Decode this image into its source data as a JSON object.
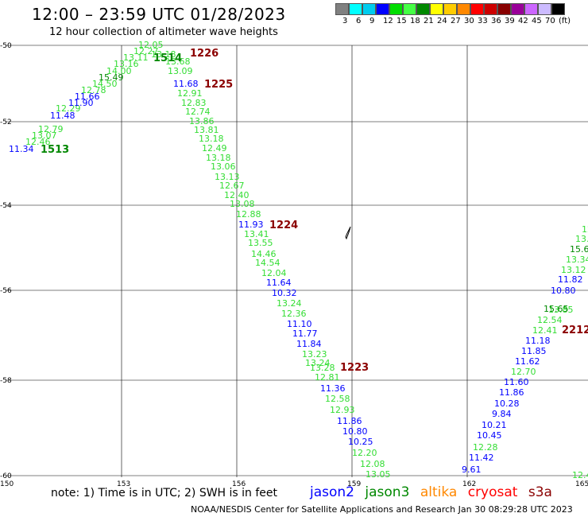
{
  "header": {
    "title": "12:00 – 23:59 UTC 01/28/2023",
    "subtitle": "12 hour collection of altimeter wave heights"
  },
  "scale": {
    "colors": [
      "#808080",
      "#00ffff",
      "#00ccee",
      "#0000ff",
      "#00dd00",
      "#44ff44",
      "#008800",
      "#ffff00",
      "#ffcc00",
      "#ff8800",
      "#ff0000",
      "#cc0000",
      "#880000",
      "#990099",
      "#cc66ff",
      "#ccbbff",
      "#000000"
    ],
    "labels": [
      "3",
      "6",
      "9",
      "12",
      "15",
      "18",
      "21",
      "24",
      "27",
      "30",
      "33",
      "36",
      "39",
      "42",
      "45",
      "70",
      "(ft)"
    ]
  },
  "axes": {
    "y_labels": [
      "-50",
      "-52",
      "-54",
      "-56",
      "-58",
      "-60"
    ],
    "x_labels": [
      "150",
      "153",
      "156",
      "159",
      "162",
      "165"
    ]
  },
  "colors": {
    "blue": "#0000ff",
    "lightgreen": "#33dd33",
    "green": "#008800",
    "darkred": "#8b0000"
  },
  "passes": [
    "1513",
    "1514",
    "1226",
    "1225",
    "1224",
    "1223",
    "2212"
  ],
  "track1": [
    {
      "v": "11.34",
      "c": "blue"
    },
    {
      "v": "12.46",
      "c": "lightgreen"
    },
    {
      "v": "13.07",
      "c": "lightgreen"
    },
    {
      "v": "12.79",
      "c": "lightgreen"
    },
    {
      "v": "11.48",
      "c": "blue"
    },
    {
      "v": "12.29",
      "c": "lightgreen"
    },
    {
      "v": "11.90",
      "c": "blue"
    },
    {
      "v": "11.66",
      "c": "blue"
    },
    {
      "v": "12.78",
      "c": "lightgreen"
    },
    {
      "v": "14.50",
      "c": "lightgreen"
    },
    {
      "v": "15.49",
      "c": "green"
    },
    {
      "v": "14.00",
      "c": "lightgreen"
    },
    {
      "v": "13.16",
      "c": "lightgreen"
    },
    {
      "v": "13.11",
      "c": "lightgreen"
    },
    {
      "v": "12.27",
      "c": "lightgreen"
    },
    {
      "v": "12.05",
      "c": "lightgreen"
    },
    {
      "v": "13.18",
      "c": "lightgreen"
    },
    {
      "v": "13.68",
      "c": "lightgreen"
    },
    {
      "v": "13.09",
      "c": "lightgreen"
    }
  ],
  "track2": [
    {
      "v": "11.68",
      "c": "blue"
    },
    {
      "v": "12.91",
      "c": "lightgreen"
    },
    {
      "v": "12.83",
      "c": "lightgreen"
    },
    {
      "v": "12.74",
      "c": "lightgreen"
    },
    {
      "v": "13.86",
      "c": "lightgreen"
    },
    {
      "v": "13.81",
      "c": "lightgreen"
    },
    {
      "v": "13.18",
      "c": "lightgreen"
    },
    {
      "v": "12.49",
      "c": "lightgreen"
    },
    {
      "v": "13.18",
      "c": "lightgreen"
    },
    {
      "v": "13.06",
      "c": "lightgreen"
    },
    {
      "v": "13.13",
      "c": "lightgreen"
    },
    {
      "v": "12.67",
      "c": "lightgreen"
    },
    {
      "v": "12.40",
      "c": "lightgreen"
    },
    {
      "v": "13.08",
      "c": "lightgreen"
    },
    {
      "v": "12.88",
      "c": "lightgreen"
    },
    {
      "v": "11.93",
      "c": "blue"
    },
    {
      "v": "13.41",
      "c": "lightgreen"
    },
    {
      "v": "13.55",
      "c": "lightgreen"
    },
    {
      "v": "14.46",
      "c": "lightgreen"
    },
    {
      "v": "14.54",
      "c": "lightgreen"
    },
    {
      "v": "12.04",
      "c": "lightgreen"
    },
    {
      "v": "11.64",
      "c": "blue"
    },
    {
      "v": "10.32",
      "c": "blue"
    },
    {
      "v": "13.24",
      "c": "lightgreen"
    },
    {
      "v": "12.36",
      "c": "lightgreen"
    },
    {
      "v": "11.10",
      "c": "blue"
    },
    {
      "v": "11.77",
      "c": "blue"
    },
    {
      "v": "11.84",
      "c": "blue"
    },
    {
      "v": "13.23",
      "c": "lightgreen"
    },
    {
      "v": "13.24",
      "c": "lightgreen"
    },
    {
      "v": "13.28",
      "c": "lightgreen"
    },
    {
      "v": "12.81",
      "c": "lightgreen"
    },
    {
      "v": "11.36",
      "c": "blue"
    },
    {
      "v": "12.58",
      "c": "lightgreen"
    },
    {
      "v": "12.93",
      "c": "lightgreen"
    },
    {
      "v": "11.86",
      "c": "blue"
    },
    {
      "v": "10.80",
      "c": "blue"
    },
    {
      "v": "10.25",
      "c": "blue"
    },
    {
      "v": "12.20",
      "c": "lightgreen"
    },
    {
      "v": "12.08",
      "c": "lightgreen"
    },
    {
      "v": "13.05",
      "c": "lightgreen"
    }
  ],
  "track3": [
    {
      "v": "9.61",
      "c": "blue"
    },
    {
      "v": "11.42",
      "c": "blue"
    },
    {
      "v": "12.28",
      "c": "lightgreen"
    },
    {
      "v": "10.45",
      "c": "blue"
    },
    {
      "v": "10.21",
      "c": "blue"
    },
    {
      "v": "9.84",
      "c": "blue"
    },
    {
      "v": "10.28",
      "c": "blue"
    },
    {
      "v": "11.86",
      "c": "blue"
    },
    {
      "v": "11.60",
      "c": "blue"
    },
    {
      "v": "12.70",
      "c": "lightgreen"
    },
    {
      "v": "11.62",
      "c": "blue"
    },
    {
      "v": "11.85",
      "c": "blue"
    },
    {
      "v": "11.18",
      "c": "blue"
    },
    {
      "v": "12.41",
      "c": "lightgreen"
    },
    {
      "v": "12.54",
      "c": "lightgreen"
    },
    {
      "v": "13.85",
      "c": "lightgreen"
    },
    {
      "v": "15.65",
      "c": "green"
    },
    {
      "v": "10.80",
      "c": "blue"
    },
    {
      "v": "11.82",
      "c": "blue"
    },
    {
      "v": "13.12",
      "c": "lightgreen"
    },
    {
      "v": "13.34",
      "c": "lightgreen"
    },
    {
      "v": "15.6",
      "c": "green"
    },
    {
      "v": "13.",
      "c": "lightgreen"
    },
    {
      "v": "12",
      "c": "lightgreen"
    }
  ],
  "track_edge": [
    {
      "v": "12.4",
      "c": "lightgreen"
    }
  ],
  "footer": {
    "note": "note: 1) Time is in UTC; 2) SWH is in feet",
    "legend": [
      {
        "name": "jason2",
        "color": "#0000ff"
      },
      {
        "name": "jason3",
        "color": "#008800"
      },
      {
        "name": "altika",
        "color": "#ff8800"
      },
      {
        "name": "cryosat",
        "color": "#ff0000"
      },
      {
        "name": "s3a",
        "color": "#8b0000"
      }
    ],
    "credit": "NOAA/NESDIS Center for Satellite Applications and Research   Jan 30 08:29:28 UTC 2023"
  }
}
